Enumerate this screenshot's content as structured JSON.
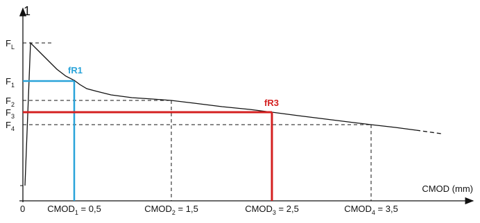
{
  "axes": {
    "y_label": "1",
    "origin": "0",
    "x_label": "CMOD (mm)"
  },
  "y_levels": [
    {
      "main": "F",
      "sub": "L"
    },
    {
      "main": "F",
      "sub": "1"
    },
    {
      "main": "F",
      "sub": "2"
    },
    {
      "main": "F",
      "sub": "3"
    },
    {
      "main": "F",
      "sub": "4"
    }
  ],
  "markers": {
    "fr1": "fR1",
    "fr3": "fR3"
  },
  "x_levels": [
    {
      "main": "CMOD",
      "sub": "1",
      "rest": " = 0,5"
    },
    {
      "main": "CMOD",
      "sub": "2",
      "rest": " = 1,5"
    },
    {
      "main": "CMOD",
      "sub": "3",
      "rest": " = 2,5"
    },
    {
      "main": "CMOD",
      "sub": "4",
      "rest": " = 3,5"
    }
  ]
}
